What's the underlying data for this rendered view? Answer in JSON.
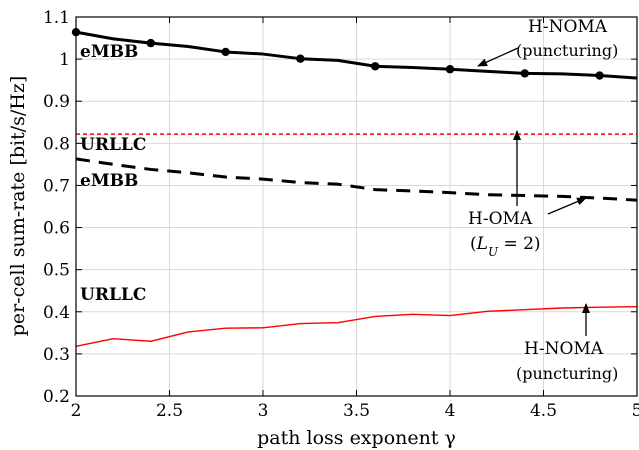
{
  "chart_data": {
    "type": "line",
    "xlabel": "path loss exponent γ",
    "ylabel": "per-cell sum-rate [bit/s/Hz]",
    "xlim": [
      2,
      5
    ],
    "ylim": [
      0.2,
      1.1
    ],
    "xticks": [
      2,
      2.5,
      3,
      3.5,
      4,
      4.5,
      5
    ],
    "xtick_labels": [
      "2",
      "2.5",
      "3",
      "3.5",
      "4",
      "4.5",
      "5"
    ],
    "yticks": [
      0.2,
      0.3,
      0.4,
      0.5,
      0.6,
      0.7,
      0.8,
      0.9,
      1.0,
      1.1
    ],
    "ytick_labels": [
      "0.2",
      "0.3",
      "0.4",
      "0.5",
      "0.6",
      "0.7",
      "0.8",
      "0.9",
      "1",
      "1.1"
    ],
    "grid": true,
    "series": [
      {
        "key": "noma_embb",
        "x": [
          2,
          2.2,
          2.4,
          2.6,
          2.8,
          3,
          3.2,
          3.4,
          3.6,
          3.8,
          4,
          4.2,
          4.4,
          4.6,
          4.8,
          5
        ],
        "y": [
          1.064,
          1.048,
          1.038,
          1.03,
          1.017,
          1.012,
          1.001,
          0.997,
          0.983,
          0.98,
          0.976,
          0.971,
          0.966,
          0.965,
          0.961,
          0.955
        ],
        "color": "#000000",
        "style": "solid",
        "markers_at": [
          2,
          2.4,
          2.8,
          3.2,
          3.6,
          4,
          4.4,
          4.8
        ]
      },
      {
        "key": "oma_embb",
        "x": [
          2,
          2.2,
          2.4,
          2.6,
          2.8,
          3,
          3.2,
          3.4,
          3.6,
          3.8,
          4,
          4.2,
          4.4,
          4.6,
          4.8,
          5
        ],
        "y": [
          0.763,
          0.75,
          0.738,
          0.73,
          0.72,
          0.715,
          0.707,
          0.703,
          0.69,
          0.687,
          0.683,
          0.678,
          0.676,
          0.674,
          0.67,
          0.665
        ],
        "color": "#000000",
        "style": "dashed"
      },
      {
        "key": "oma_urllc",
        "x": [
          2,
          5
        ],
        "y": [
          0.822,
          0.822
        ],
        "color": "#ff0000",
        "style": "dotted"
      },
      {
        "key": "noma_urllc",
        "x": [
          2,
          2.2,
          2.4,
          2.6,
          2.8,
          3,
          3.2,
          3.4,
          3.6,
          3.8,
          4,
          4.2,
          4.4,
          4.6,
          4.8,
          5
        ],
        "y": [
          0.318,
          0.336,
          0.33,
          0.352,
          0.361,
          0.362,
          0.372,
          0.374,
          0.389,
          0.394,
          0.391,
          0.401,
          0.405,
          0.409,
          0.411,
          0.412
        ],
        "color": "#ff0000",
        "style": "solid"
      }
    ],
    "annotations": {
      "embb_top": "eMBB",
      "urllc_top": "URLLC",
      "embb_mid": "eMBB",
      "urllc_bottom": "URLLC",
      "hnoma_top_line1": "H-NOMA",
      "hnoma_top_line2": "(puncturing)",
      "homa_line1": "H-OMA",
      "homa_line2": "(L_U = 2)",
      "hnoma_bottom_line1": "H-NOMA",
      "hnoma_bottom_line2": "(puncturing)"
    }
  }
}
